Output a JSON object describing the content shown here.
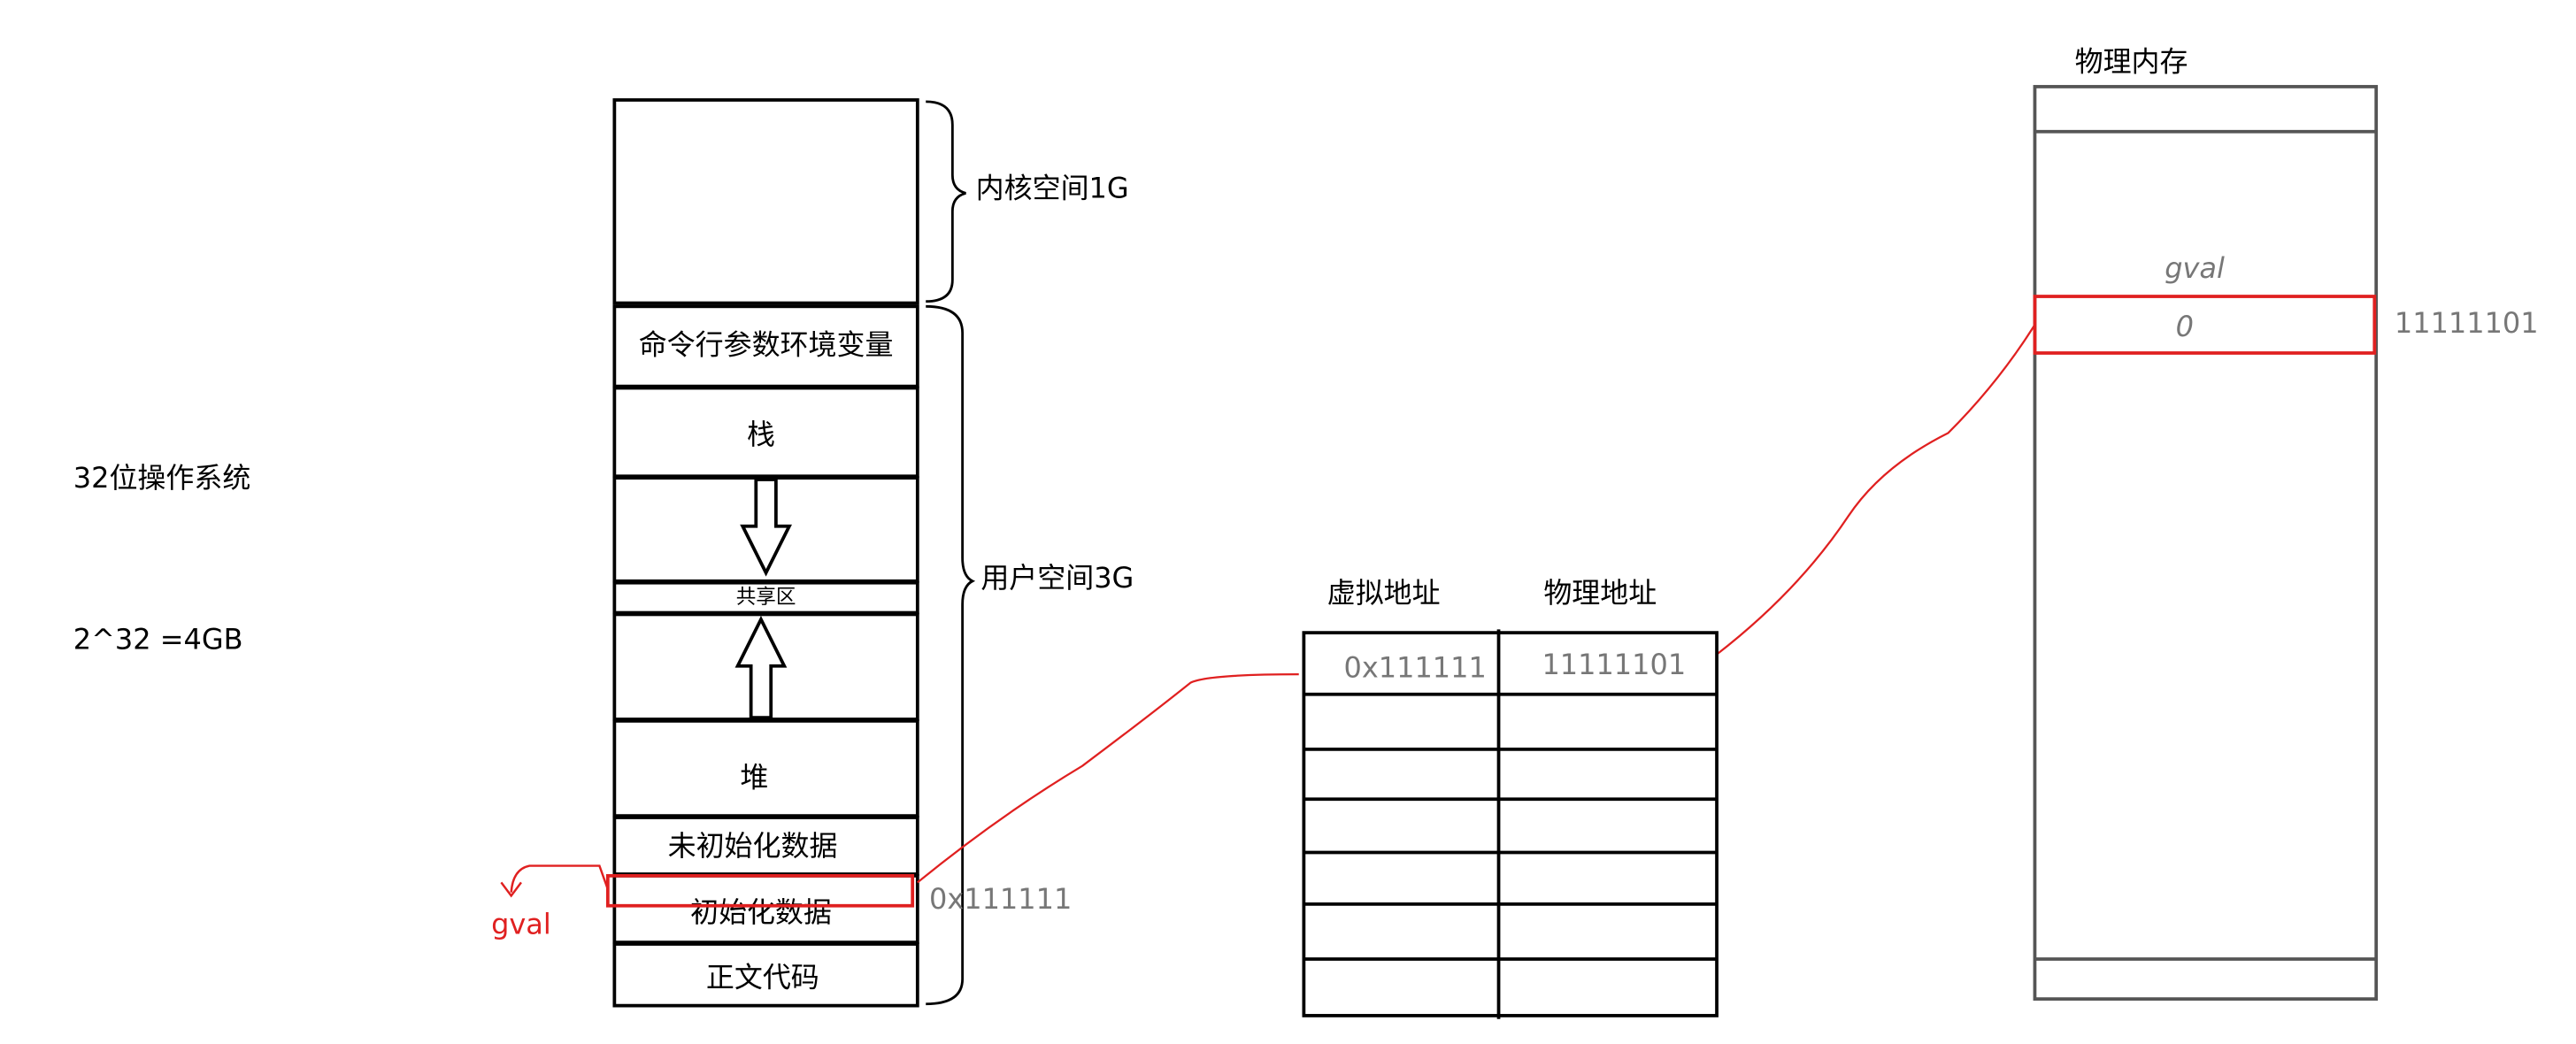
{
  "left_labels": [
    "32位操作系统",
    "2^32 =4GB"
  ],
  "memory_layout": {
    "segments": [
      "命令行参数环境变量",
      "栈",
      "共享区",
      "堆",
      "未初始化数据",
      "初始化数据",
      "正文代码"
    ],
    "kernel_space": "内核空间1G",
    "user_space": "用户空间3G",
    "variable": "gval",
    "virtual_address": "0x111111"
  },
  "page_table": {
    "headers": [
      "虚拟地址",
      "物理地址"
    ],
    "rows": [
      [
        "0x111111",
        "11111101"
      ]
    ]
  },
  "physical_memory": {
    "title": "物理内存",
    "variable": "gval",
    "value": "0",
    "address": "11111101"
  }
}
